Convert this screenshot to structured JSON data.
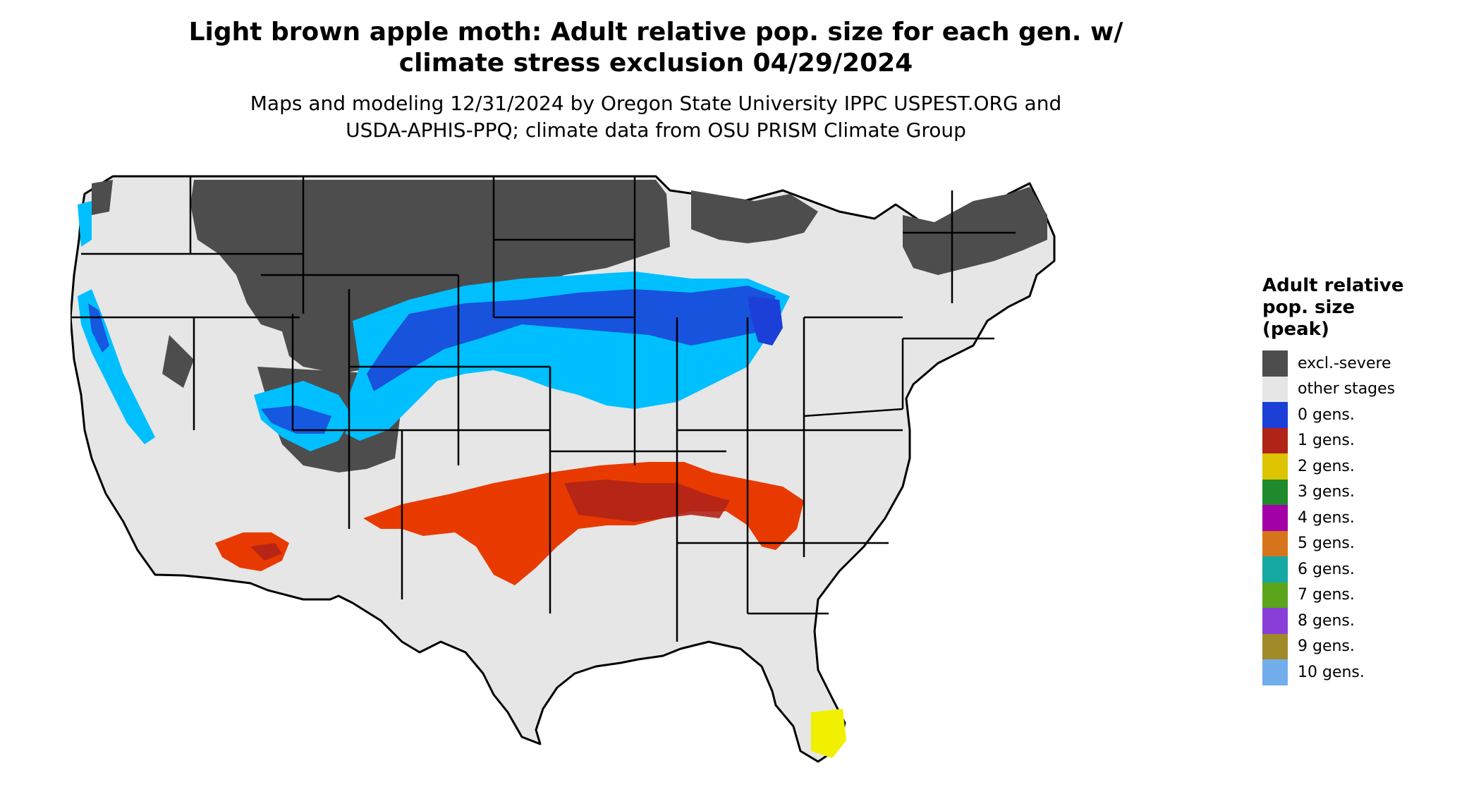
{
  "title": {
    "line1": "Light brown apple moth: Adult relative pop. size for each gen. w/",
    "line2": "climate stress exclusion 04/29/2024"
  },
  "subtitle": {
    "line1": "Maps and modeling 12/31/2024 by Oregon State University IPPC USPEST.ORG and",
    "line2": "USDA-APHIS-PPQ; climate data from OSU PRISM Climate Group"
  },
  "map": {
    "region": "Contiguous United States",
    "base_color": "#e6e6e6",
    "border_color": "#000000"
  },
  "legend": {
    "title_lines": [
      "Adult relative",
      "pop. size",
      "(peak)"
    ],
    "items": [
      {
        "label": "excl.-severe",
        "color": "#4d4d4d"
      },
      {
        "label": "other stages",
        "color": "#e6e6e6"
      },
      {
        "label": "0 gens.",
        "color": "#1c3fd8"
      },
      {
        "label": "1 gens.",
        "color": "#b02418"
      },
      {
        "label": "2 gens.",
        "color": "#dcc400"
      },
      {
        "label": "3 gens.",
        "color": "#1f8a2b"
      },
      {
        "label": "4 gens.",
        "color": "#a300a8"
      },
      {
        "label": "5 gens.",
        "color": "#d6741b"
      },
      {
        "label": "6 gens.",
        "color": "#16a8a3"
      },
      {
        "label": "7 gens.",
        "color": "#5aa51a"
      },
      {
        "label": "8 gens.",
        "color": "#8a3ed8"
      },
      {
        "label": "9 gens.",
        "color": "#a08a28"
      },
      {
        "label": "10 gens.",
        "color": "#73aeec"
      }
    ]
  }
}
